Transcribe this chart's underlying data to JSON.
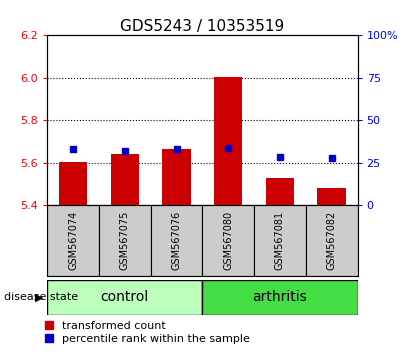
{
  "title": "GDS5243 / 10353519",
  "samples": [
    "GSM567074",
    "GSM567075",
    "GSM567076",
    "GSM567080",
    "GSM567081",
    "GSM567082"
  ],
  "red_values": [
    5.605,
    5.642,
    5.663,
    6.003,
    5.53,
    5.48
  ],
  "blue_values": [
    5.665,
    5.656,
    5.664,
    5.672,
    5.628,
    5.625
  ],
  "ylim": [
    5.4,
    6.2
  ],
  "yticks_left": [
    5.4,
    5.6,
    5.8,
    6.0,
    6.2
  ],
  "yticks_right": [
    0,
    25,
    50,
    75,
    100
  ],
  "right_ylim": [
    0,
    100
  ],
  "bar_bottom": 5.4,
  "bar_width": 0.55,
  "red_color": "#cc0000",
  "blue_color": "#0000cc",
  "control_color": "#bbffbb",
  "arthritis_color": "#44dd44",
  "sample_bg_color": "#cccccc",
  "title_fontsize": 11,
  "tick_fontsize": 8,
  "sample_fontsize": 7,
  "group_fontsize": 10,
  "legend_fontsize": 8,
  "blue_marker_size": 5,
  "dotted_ticks": [
    5.6,
    5.8,
    6.0
  ],
  "disease_state_label": "disease state",
  "control_samples": [
    0,
    1,
    2
  ],
  "arthritis_samples": [
    3,
    4,
    5
  ]
}
